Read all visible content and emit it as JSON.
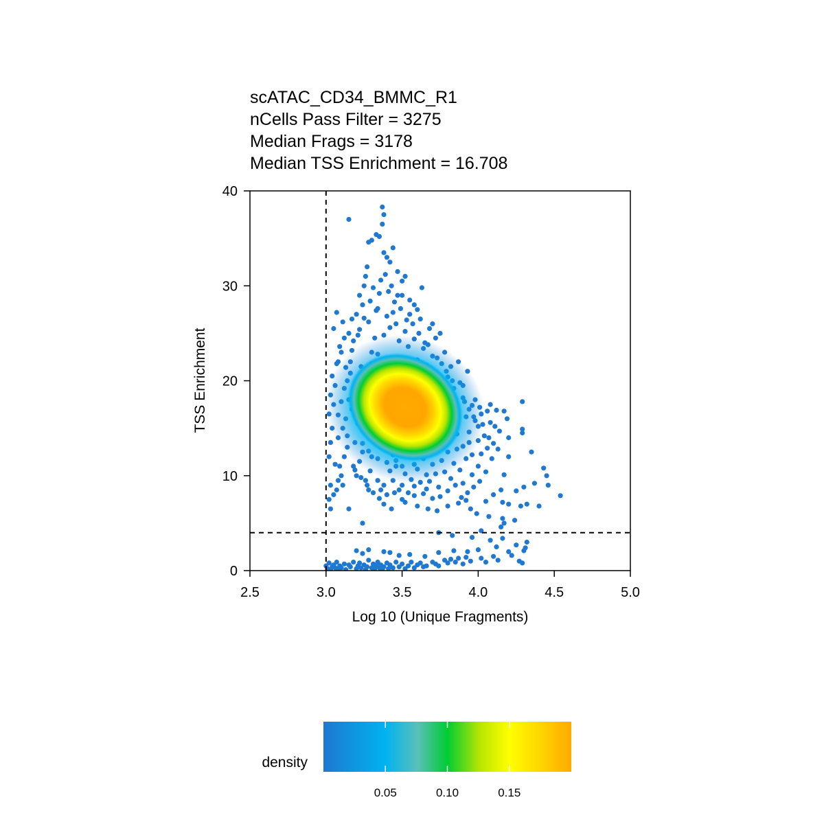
{
  "chart_data": {
    "type": "scatter",
    "title_lines": [
      "scATAC_CD34_BMMC_R1",
      "nCells Pass Filter = 3275",
      "Median Frags = 3178",
      "Median TSS Enrichment = 16.708"
    ],
    "xlabel": "Log 10 (Unique Fragments)",
    "ylabel": "TSS Enrichment",
    "xlim": [
      2.5,
      5.0
    ],
    "ylim": [
      0,
      40
    ],
    "x_ticks": [
      "2.5",
      "3.0",
      "3.5",
      "4.0",
      "4.5",
      "5.0"
    ],
    "y_ticks": [
      "0",
      "10",
      "20",
      "30",
      "40"
    ],
    "grid": false,
    "thresholds": {
      "x": 3.0,
      "y": 4
    },
    "color_scale": {
      "title": "density",
      "range": [
        0.0,
        0.2
      ],
      "ticks": [
        "0.05",
        "0.10",
        "0.15"
      ],
      "colors": [
        "#1f78d1",
        "#00b3f0",
        "#59c0b8",
        "#00cc33",
        "#b7e500",
        "#ffff00",
        "#ffaa00"
      ]
    },
    "points": [
      [
        3.0,
        0.5
      ],
      [
        3.01,
        0.2
      ],
      [
        3.02,
        0.8
      ],
      [
        3.03,
        0.1
      ],
      [
        3.04,
        0.4
      ],
      [
        3.05,
        0.6
      ],
      [
        3.06,
        0.3
      ],
      [
        3.07,
        0.9
      ],
      [
        3.08,
        0.2
      ],
      [
        3.09,
        0.5
      ],
      [
        3.1,
        0.3
      ],
      [
        3.12,
        0.7
      ],
      [
        3.13,
        0.1
      ],
      [
        3.15,
        0.6
      ],
      [
        3.16,
        0.4
      ],
      [
        3.18,
        0.9
      ],
      [
        3.2,
        0.2
      ],
      [
        3.21,
        0.5
      ],
      [
        3.22,
        0.8
      ],
      [
        3.23,
        0.3
      ],
      [
        3.25,
        0.6
      ],
      [
        3.26,
        0.1
      ],
      [
        3.27,
        0.4
      ],
      [
        3.28,
        1.1
      ],
      [
        3.3,
        0.3
      ],
      [
        3.31,
        0.7
      ],
      [
        3.32,
        0.2
      ],
      [
        3.33,
        0.5
      ],
      [
        3.34,
        0.9
      ],
      [
        3.35,
        0.3
      ],
      [
        3.36,
        0.6
      ],
      [
        3.37,
        0.1
      ],
      [
        3.38,
        0.4
      ],
      [
        3.4,
        0.8
      ],
      [
        3.41,
        0.2
      ],
      [
        3.42,
        0.6
      ],
      [
        3.44,
        0.3
      ],
      [
        3.46,
        0.9
      ],
      [
        3.48,
        0.4
      ],
      [
        3.5,
        0.7
      ],
      [
        3.52,
        0.2
      ],
      [
        3.54,
        0.5
      ],
      [
        3.56,
        0.9
      ],
      [
        3.58,
        0.3
      ],
      [
        3.6,
        0.6
      ],
      [
        3.62,
        0.8
      ],
      [
        3.64,
        0.4
      ],
      [
        3.66,
        0.5
      ],
      [
        3.7,
        0.9
      ],
      [
        3.72,
        0.7
      ],
      [
        3.74,
        0.5
      ],
      [
        3.78,
        1.1
      ],
      [
        3.8,
        0.8
      ],
      [
        3.82,
        1.2
      ],
      [
        3.85,
        0.9
      ],
      [
        3.87,
        1.3
      ],
      [
        3.9,
        0.7
      ],
      [
        3.92,
        1.4
      ],
      [
        3.95,
        1.0
      ],
      [
        4.02,
        1.3
      ],
      [
        4.05,
        0.9
      ],
      [
        4.1,
        1.5
      ],
      [
        4.13,
        1.1
      ],
      [
        4.2,
        2.0
      ],
      [
        4.22,
        1.6
      ],
      [
        4.27,
        1.0
      ],
      [
        4.29,
        0.8
      ],
      [
        4.3,
        2.1
      ],
      [
        4.32,
        3.0
      ],
      [
        3.2,
        2.1
      ],
      [
        3.24,
        1.8
      ],
      [
        3.28,
        2.2
      ],
      [
        3.38,
        2.0
      ],
      [
        3.42,
        1.9
      ],
      [
        3.48,
        1.6
      ],
      [
        3.55,
        1.7
      ],
      [
        3.65,
        1.5
      ],
      [
        3.74,
        1.9
      ],
      [
        3.84,
        2.1
      ],
      [
        3.93,
        2.0
      ],
      [
        4.0,
        2.2
      ],
      [
        4.12,
        2.5
      ],
      [
        4.25,
        2.7
      ],
      [
        4.31,
        2.4
      ],
      [
        3.74,
        4.0
      ],
      [
        3.83,
        3.7
      ],
      [
        3.96,
        3.5
      ],
      [
        4.08,
        3.2
      ],
      [
        4.16,
        3.4
      ],
      [
        4.02,
        4.2
      ],
      [
        4.15,
        4.6
      ],
      [
        4.17,
        5.0
      ],
      [
        3.99,
        6.0
      ],
      [
        4.07,
        5.7
      ],
      [
        4.16,
        5.5
      ],
      [
        4.24,
        5.3
      ],
      [
        3.24,
        5.0
      ],
      [
        3.03,
        6.5
      ],
      [
        3.02,
        7.5
      ],
      [
        3.03,
        9.0
      ],
      [
        3.05,
        8.0
      ],
      [
        3.07,
        8.5
      ],
      [
        3.08,
        9.5
      ],
      [
        3.15,
        6.5
      ],
      [
        3.38,
        7.0
      ],
      [
        3.43,
        6.5
      ],
      [
        3.52,
        7.2
      ],
      [
        3.6,
        6.8
      ],
      [
        3.67,
        6.5
      ],
      [
        3.73,
        6.3
      ],
      [
        3.8,
        6.8
      ],
      [
        3.87,
        7.1
      ],
      [
        3.92,
        7.4
      ],
      [
        3.95,
        6.5
      ],
      [
        4.05,
        7.3
      ],
      [
        4.16,
        7.2
      ],
      [
        4.2,
        7.0
      ],
      [
        4.28,
        6.8
      ],
      [
        4.32,
        7.0
      ],
      [
        4.4,
        6.8
      ],
      [
        4.37,
        9.2
      ],
      [
        4.43,
        10.8
      ],
      [
        4.45,
        10.0
      ],
      [
        4.46,
        9.0
      ],
      [
        4.54,
        7.9
      ],
      [
        4.1,
        8.0
      ],
      [
        4.15,
        8.5
      ],
      [
        4.25,
        8.4
      ],
      [
        4.3,
        8.8
      ],
      [
        4.17,
        10.1
      ],
      [
        4.2,
        12.0
      ],
      [
        4.35,
        12.5
      ],
      [
        4.2,
        14.0
      ],
      [
        4.29,
        14.5
      ],
      [
        4.29,
        14.9
      ],
      [
        4.29,
        17.8
      ],
      [
        4.17,
        16.8
      ],
      [
        4.19,
        16.0
      ],
      [
        4.08,
        17.5
      ],
      [
        4.06,
        16.8
      ],
      [
        4.0,
        15.2
      ],
      [
        3.94,
        13.5
      ],
      [
        3.98,
        18.0
      ],
      [
        3.9,
        19.5
      ],
      [
        3.93,
        21.0
      ],
      [
        3.82,
        21.5
      ],
      [
        3.87,
        22.0
      ],
      [
        3.78,
        23.0
      ],
      [
        3.75,
        25.0
      ],
      [
        3.72,
        24.5
      ],
      [
        3.68,
        25.5
      ],
      [
        3.65,
        24.0
      ],
      [
        3.62,
        26.5
      ],
      [
        3.6,
        27.5
      ],
      [
        3.58,
        28.0
      ],
      [
        3.55,
        28.5
      ],
      [
        3.5,
        29.0
      ],
      [
        3.5,
        30.5
      ],
      [
        3.47,
        31.5
      ],
      [
        3.43,
        30.0
      ],
      [
        3.4,
        33.0
      ],
      [
        3.38,
        33.5
      ],
      [
        3.35,
        35.2
      ],
      [
        3.33,
        35.4
      ],
      [
        3.3,
        34.8
      ],
      [
        3.27,
        32.0
      ],
      [
        3.26,
        31.0
      ],
      [
        3.25,
        30.0
      ],
      [
        3.24,
        28.0
      ],
      [
        3.22,
        29.0
      ],
      [
        3.2,
        27.0
      ],
      [
        3.17,
        26.5
      ],
      [
        3.15,
        25.0
      ],
      [
        3.12,
        24.5
      ],
      [
        3.1,
        23.0
      ],
      [
        3.08,
        22.0
      ],
      [
        3.07,
        27.2
      ],
      [
        3.05,
        25.5
      ],
      [
        3.15,
        37.0
      ],
      [
        3.37,
        38.3
      ],
      [
        3.44,
        34.0
      ],
      [
        3.37,
        36.5
      ],
      [
        3.38,
        37.5
      ],
      [
        3.28,
        34.6
      ],
      [
        3.42,
        32.5
      ],
      [
        3.52,
        31.0
      ],
      [
        3.63,
        29.8
      ],
      [
        3.35,
        29.2
      ],
      [
        3.45,
        28.3
      ],
      [
        3.7,
        26.0
      ],
      [
        3.55,
        27.0
      ],
      [
        3.02,
        12.0
      ],
      [
        3.03,
        13.5
      ],
      [
        3.04,
        15.0
      ],
      [
        3.02,
        16.5
      ],
      [
        3.05,
        17.5
      ],
      [
        3.03,
        18.5
      ],
      [
        3.06,
        19.5
      ],
      [
        3.04,
        20.5
      ],
      [
        3.08,
        14.0
      ],
      [
        3.09,
        11.0
      ],
      [
        3.1,
        10.0
      ],
      [
        3.11,
        9.0
      ],
      [
        3.12,
        12.0
      ],
      [
        3.14,
        13.0
      ],
      [
        3.13,
        16.0
      ],
      [
        3.15,
        18.0
      ],
      [
        3.14,
        20.0
      ],
      [
        3.16,
        22.0
      ],
      [
        3.18,
        11.0
      ],
      [
        3.2,
        10.0
      ],
      [
        3.22,
        11.5
      ],
      [
        3.19,
        13.5
      ],
      [
        3.21,
        15.5
      ],
      [
        3.17,
        17.0
      ],
      [
        3.2,
        19.0
      ],
      [
        3.23,
        21.5
      ],
      [
        3.24,
        12.5
      ],
      [
        3.26,
        9.5
      ],
      [
        3.28,
        8.5
      ],
      [
        3.29,
        10.5
      ],
      [
        3.3,
        12.0
      ],
      [
        3.27,
        14.5
      ],
      [
        3.3,
        23.0
      ],
      [
        3.32,
        24.5
      ],
      [
        3.34,
        9.5
      ],
      [
        3.36,
        8.5
      ],
      [
        3.38,
        9.0
      ],
      [
        3.4,
        8.0
      ],
      [
        3.42,
        10.5
      ],
      [
        3.44,
        9.5
      ],
      [
        3.46,
        11.0
      ],
      [
        3.48,
        8.5
      ],
      [
        3.5,
        9.0
      ],
      [
        3.52,
        10.2
      ],
      [
        3.54,
        8.2
      ],
      [
        3.56,
        9.6
      ],
      [
        3.58,
        8.9
      ],
      [
        3.6,
        10.7
      ],
      [
        3.62,
        9.3
      ],
      [
        3.64,
        8.1
      ],
      [
        3.66,
        10.1
      ],
      [
        3.68,
        9.4
      ],
      [
        3.7,
        11.2
      ],
      [
        3.72,
        10.2
      ],
      [
        3.74,
        8.8
      ],
      [
        3.76,
        11.6
      ],
      [
        3.78,
        10.4
      ],
      [
        3.8,
        12.5
      ],
      [
        3.82,
        9.7
      ],
      [
        3.84,
        11.3
      ],
      [
        3.86,
        12.8
      ],
      [
        3.88,
        10.6
      ],
      [
        3.9,
        13.1
      ],
      [
        3.92,
        11.8
      ],
      [
        3.94,
        14.6
      ],
      [
        3.96,
        12.2
      ],
      [
        3.98,
        15.8
      ],
      [
        4.0,
        13.7
      ],
      [
        4.02,
        16.5
      ],
      [
        4.04,
        14.2
      ],
      [
        4.06,
        12.9
      ],
      [
        4.08,
        15.6
      ],
      [
        4.1,
        13.4
      ],
      [
        4.12,
        16.9
      ],
      [
        4.14,
        14.7
      ],
      [
        4.0,
        11.0
      ],
      [
        4.02,
        12.3
      ],
      [
        3.96,
        10.1
      ],
      [
        3.9,
        9.2
      ],
      [
        3.85,
        9.0
      ],
      [
        3.8,
        8.4
      ],
      [
        3.75,
        7.8
      ],
      [
        3.7,
        7.6
      ],
      [
        3.66,
        8.6
      ],
      [
        3.58,
        7.9
      ],
      [
        3.5,
        7.5
      ],
      [
        3.45,
        8.2
      ],
      [
        3.55,
        12.0
      ],
      [
        3.62,
        12.4
      ],
      [
        3.7,
        13.0
      ],
      [
        3.78,
        13.6
      ],
      [
        3.86,
        14.4
      ],
      [
        3.92,
        16.2
      ],
      [
        3.96,
        17.4
      ],
      [
        3.9,
        18.2
      ],
      [
        3.84,
        19.2
      ],
      [
        3.8,
        20.4
      ],
      [
        3.76,
        21.8
      ],
      [
        3.7,
        22.6
      ],
      [
        3.64,
        23.4
      ],
      [
        3.58,
        24.4
      ],
      [
        3.52,
        25.2
      ],
      [
        3.46,
        26.0
      ],
      [
        3.4,
        26.8
      ],
      [
        3.34,
        27.6
      ],
      [
        3.28,
        26.2
      ],
      [
        3.22,
        25.4
      ],
      [
        3.18,
        24.2
      ],
      [
        3.16,
        20.8
      ],
      [
        3.12,
        19.2
      ],
      [
        3.1,
        17.8
      ],
      [
        3.08,
        16.4
      ],
      [
        3.11,
        15.0
      ],
      [
        3.14,
        14.2
      ],
      [
        3.24,
        13.4
      ],
      [
        3.28,
        12.6
      ],
      [
        3.34,
        11.8
      ],
      [
        3.4,
        11.4
      ],
      [
        3.46,
        11.6
      ],
      [
        3.38,
        24.8
      ],
      [
        3.42,
        25.6
      ],
      [
        3.48,
        24.2
      ],
      [
        3.54,
        23.6
      ],
      [
        3.6,
        22.2
      ],
      [
        3.66,
        21.6
      ],
      [
        3.72,
        20.6
      ],
      [
        3.76,
        19.6
      ],
      [
        3.8,
        18.0
      ],
      [
        3.84,
        16.8
      ],
      [
        3.86,
        15.6
      ],
      [
        3.82,
        14.4
      ],
      [
        3.76,
        13.2
      ],
      [
        3.7,
        12.6
      ],
      [
        3.64,
        11.8
      ],
      [
        3.58,
        11.2
      ],
      [
        3.5,
        11.0
      ],
      [
        3.44,
        12.2
      ],
      [
        3.36,
        13.0
      ],
      [
        3.3,
        14.0
      ],
      [
        3.26,
        15.6
      ],
      [
        3.24,
        17.2
      ],
      [
        3.22,
        18.8
      ],
      [
        3.26,
        20.4
      ],
      [
        3.3,
        21.8
      ],
      [
        3.34,
        22.8
      ],
      [
        3.06,
        11.2
      ],
      [
        3.07,
        21.8
      ],
      [
        3.09,
        23.6
      ],
      [
        3.11,
        26.2
      ],
      [
        3.13,
        21.4
      ],
      [
        3.17,
        23.2
      ],
      [
        3.21,
        24.8
      ],
      [
        3.25,
        26.6
      ],
      [
        3.29,
        28.4
      ],
      [
        3.31,
        29.8
      ],
      [
        3.33,
        27.4
      ],
      [
        3.36,
        30.6
      ],
      [
        3.39,
        31.2
      ],
      [
        3.41,
        29.4
      ],
      [
        3.44,
        27.2
      ],
      [
        3.47,
        29.0
      ],
      [
        3.49,
        27.6
      ],
      [
        3.53,
        26.4
      ],
      [
        3.57,
        26.0
      ],
      [
        3.61,
        25.0
      ],
      [
        3.67,
        23.8
      ],
      [
        3.73,
        22.4
      ],
      [
        3.79,
        21.0
      ],
      [
        3.83,
        20.0
      ],
      [
        3.88,
        19.8
      ],
      [
        3.91,
        17.8
      ],
      [
        3.94,
        17.0
      ],
      [
        3.97,
        16.2
      ],
      [
        4.01,
        17.2
      ],
      [
        4.03,
        15.4
      ],
      [
        4.07,
        14.0
      ],
      [
        4.11,
        15.2
      ],
      [
        4.13,
        12.8
      ],
      [
        4.09,
        11.8
      ],
      [
        4.05,
        10.4
      ],
      [
        4.01,
        9.4
      ],
      [
        3.97,
        8.8
      ],
      [
        3.93,
        8.2
      ],
      [
        3.89,
        7.7
      ],
      [
        3.35,
        7.6
      ],
      [
        3.31,
        8.2
      ],
      [
        3.27,
        9.0
      ],
      [
        3.23,
        9.8
      ],
      [
        3.19,
        10.6
      ]
    ]
  }
}
